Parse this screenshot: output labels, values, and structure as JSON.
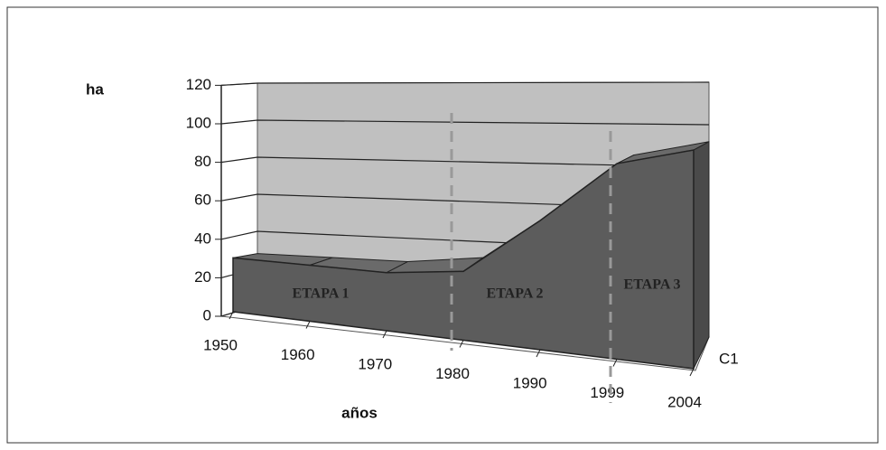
{
  "chart_data": {
    "type": "area3d",
    "y_label": "ha",
    "x_label": "años",
    "categories": [
      "1950",
      "1960",
      "1970",
      "1980",
      "1990",
      "1999",
      "2004"
    ],
    "series": [
      {
        "name": "C1",
        "color": "#5c5c5c",
        "values": [
          28,
          28,
          28,
          32,
          58,
          85,
          92
        ]
      }
    ],
    "ylim": [
      0,
      120
    ],
    "yticks": [
      0,
      20,
      40,
      60,
      80,
      100,
      120
    ],
    "grid": true,
    "annotations": [
      "ETAPA 1",
      "ETAPA 2",
      "ETAPA 3"
    ]
  }
}
